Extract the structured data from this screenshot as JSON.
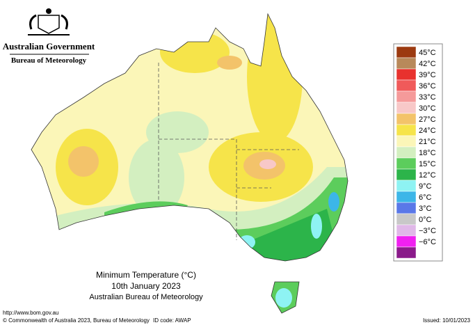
{
  "header": {
    "government": "Australian Government",
    "agency": "Bureau of Meteorology"
  },
  "map": {
    "title": "Minimum Temperature (°C)",
    "date": "10th January 2023",
    "source": "Australian Bureau of Meteorology"
  },
  "legend": [
    {
      "label": "45°C",
      "color": "#9c3a10"
    },
    {
      "label": "42°C",
      "color": "#b8895a"
    },
    {
      "label": "39°C",
      "color": "#e8322e"
    },
    {
      "label": "36°C",
      "color": "#f05a5a"
    },
    {
      "label": "33°C",
      "color": "#f59a9a"
    },
    {
      "label": "30°C",
      "color": "#f8c8c8"
    },
    {
      "label": "27°C",
      "color": "#f3c36a"
    },
    {
      "label": "24°C",
      "color": "#f6e44a"
    },
    {
      "label": "21°C",
      "color": "#fbf6b8"
    },
    {
      "label": "18°C",
      "color": "#d3efc0"
    },
    {
      "label": "15°C",
      "color": "#5ccd5c"
    },
    {
      "label": "12°C",
      "color": "#2cb44a"
    },
    {
      "label": "9°C",
      "color": "#8ef3f3"
    },
    {
      "label": "6°C",
      "color": "#3cb6e8"
    },
    {
      "label": "3°C",
      "color": "#5a78e8"
    },
    {
      "label": "0°C",
      "color": "#c8c8c8"
    },
    {
      "label": "−3°C",
      "color": "#e0b8e8"
    },
    {
      "label": "−6°C",
      "color": "#f020f0"
    },
    {
      "label": "",
      "color": "#8a1a8a"
    }
  ],
  "footer": {
    "url": "http://www.bom.gov.au",
    "copyright": "© Commonwealth of Australia 2023, Bureau of Meteorology",
    "id_code": "ID code: AWAP",
    "issued": "Issued: 10/01/2023"
  }
}
